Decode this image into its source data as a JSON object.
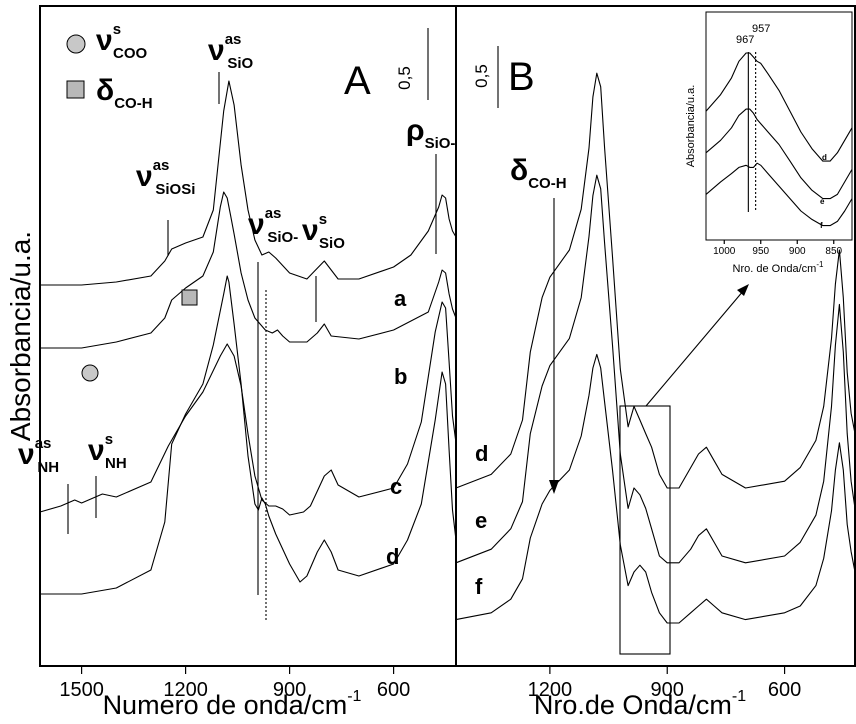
{
  "chart_data": [
    {
      "panel": "A",
      "type": "line",
      "ylabel": "Absorbancia/u.a.",
      "xlabel": "Numero de onda/cm",
      "xlabel_sup": "-1",
      "x_reversed": true,
      "xlim": [
        1620,
        420
      ],
      "x_ticks": [
        1500,
        1200,
        900,
        600
      ],
      "x_tick_labels": [
        "1500",
        "1200",
        "900",
        "600"
      ],
      "scale_bar": "0,5",
      "legend": [
        {
          "marker": "circle",
          "sym": "ν",
          "sup": "s",
          "sub": "COO",
          "color": "#c8c8c8"
        },
        {
          "marker": "square",
          "sym": "δ",
          "sup": "",
          "sub": "CO-H",
          "color": "#b8b8b8"
        }
      ],
      "band_labels": [
        {
          "sym": "ν",
          "sup": "as",
          "sub": "SiO",
          "x": 1080
        },
        {
          "sym": "ν",
          "sup": "as",
          "sub": "SiOSi",
          "x": 1230
        },
        {
          "sym": "ν",
          "sup": "as",
          "sub": "SiO-",
          "x": 960
        },
        {
          "sym": "ν",
          "sup": "s",
          "sub": "SiO",
          "x": 795
        },
        {
          "sym": "ρ",
          "sup": "",
          "sub": "SiO-",
          "x": 460
        },
        {
          "sym": "ν",
          "sup": "as",
          "sub": "NH",
          "x": 1520
        },
        {
          "sym": "ν",
          "sup": "s",
          "sub": "NH",
          "x": 1440
        }
      ],
      "series": [
        {
          "name": "a",
          "x": [
            1620,
            1500,
            1400,
            1300,
            1260,
            1240,
            1200,
            1150,
            1120,
            1090,
            1075,
            1060,
            1040,
            1020,
            1000,
            980,
            960,
            940,
            900,
            850,
            800,
            780,
            760,
            700,
            600,
            550,
            500,
            470,
            460,
            450,
            440,
            430,
            420
          ],
          "y": [
            0.2,
            0.2,
            0.21,
            0.23,
            0.28,
            0.32,
            0.34,
            0.36,
            0.45,
            0.78,
            0.88,
            0.8,
            0.6,
            0.45,
            0.35,
            0.3,
            0.31,
            0.29,
            0.24,
            0.22,
            0.28,
            0.25,
            0.22,
            0.22,
            0.26,
            0.3,
            0.38,
            0.46,
            0.5,
            0.49,
            0.42,
            0.38,
            0.36
          ]
        },
        {
          "name": "b",
          "x": [
            1620,
            1500,
            1400,
            1300,
            1260,
            1240,
            1200,
            1150,
            1120,
            1100,
            1090,
            1080,
            1070,
            1060,
            1040,
            1020,
            1000,
            970,
            950,
            935,
            920,
            900,
            850,
            820,
            800,
            780,
            700,
            600,
            500,
            470,
            460,
            450,
            440,
            430,
            420
          ],
          "y": [
            0.2,
            0.2,
            0.22,
            0.25,
            0.3,
            0.36,
            0.4,
            0.44,
            0.52,
            0.67,
            0.72,
            0.7,
            0.64,
            0.58,
            0.45,
            0.36,
            0.3,
            0.26,
            0.25,
            0.26,
            0.24,
            0.22,
            0.22,
            0.25,
            0.28,
            0.24,
            0.23,
            0.26,
            0.32,
            0.42,
            0.46,
            0.45,
            0.38,
            0.33,
            0.3
          ]
        },
        {
          "name": "c",
          "x": [
            1620,
            1560,
            1520,
            1500,
            1440,
            1400,
            1300,
            1250,
            1200,
            1150,
            1100,
            1080,
            1060,
            1040,
            1020,
            1000,
            980,
            960,
            940,
            920,
            900,
            860,
            840,
            800,
            780,
            760,
            700,
            600,
            560,
            520,
            480,
            460,
            450,
            440,
            430,
            420
          ],
          "y": [
            0.1,
            0.12,
            0.14,
            0.13,
            0.16,
            0.15,
            0.2,
            0.32,
            0.42,
            0.5,
            0.62,
            0.66,
            0.62,
            0.52,
            0.36,
            0.22,
            0.14,
            0.12,
            0.12,
            0.11,
            0.09,
            0.1,
            0.12,
            0.22,
            0.24,
            0.19,
            0.15,
            0.18,
            0.26,
            0.4,
            0.7,
            0.8,
            0.78,
            0.6,
            0.42,
            0.33
          ]
        },
        {
          "name": "d",
          "x": [
            1620,
            1500,
            1400,
            1300,
            1260,
            1240,
            1200,
            1150,
            1120,
            1090,
            1080,
            1075,
            1060,
            1040,
            1020,
            1000,
            990,
            980,
            970,
            960,
            940,
            900,
            870,
            850,
            820,
            800,
            780,
            760,
            700,
            600,
            560,
            520,
            480,
            460,
            450,
            440,
            430,
            420
          ],
          "y": [
            0.12,
            0.12,
            0.14,
            0.2,
            0.36,
            0.62,
            0.72,
            0.82,
            0.95,
            1.12,
            1.18,
            1.16,
            1.02,
            0.82,
            0.58,
            0.42,
            0.4,
            0.44,
            0.42,
            0.38,
            0.32,
            0.22,
            0.16,
            0.18,
            0.26,
            0.3,
            0.26,
            0.2,
            0.18,
            0.22,
            0.3,
            0.42,
            0.7,
            0.86,
            0.82,
            0.6,
            0.4,
            0.3
          ]
        }
      ]
    },
    {
      "panel": "B",
      "type": "line",
      "xlabel": "Nro.de Onda/cm",
      "xlabel_sup": "-1",
      "x_reversed": true,
      "xlim": [
        1440,
        420
      ],
      "x_ticks": [
        1200,
        900,
        600
      ],
      "x_tick_labels": [
        "1200",
        "900",
        "600"
      ],
      "scale_bar": "0,5",
      "annotation": {
        "sym": "δ",
        "sub": "CO-H",
        "x": 1150
      },
      "series": [
        {
          "name": "d",
          "x": [
            1440,
            1350,
            1300,
            1270,
            1250,
            1220,
            1200,
            1150,
            1120,
            1100,
            1090,
            1080,
            1070,
            1060,
            1040,
            1020,
            1000,
            985,
            970,
            955,
            940,
            920,
            900,
            870,
            840,
            820,
            800,
            780,
            760,
            700,
            600,
            560,
            520,
            500,
            480,
            470,
            460,
            450,
            440,
            430,
            420
          ],
          "y": [
            0.1,
            0.14,
            0.2,
            0.3,
            0.5,
            0.66,
            0.72,
            0.8,
            0.92,
            1.1,
            1.25,
            1.32,
            1.28,
            1.1,
            0.78,
            0.45,
            0.28,
            0.34,
            0.3,
            0.26,
            0.22,
            0.14,
            0.1,
            0.1,
            0.16,
            0.2,
            0.22,
            0.18,
            0.14,
            0.1,
            0.12,
            0.16,
            0.24,
            0.34,
            0.54,
            0.7,
            0.8,
            0.66,
            0.44,
            0.32,
            0.26
          ]
        },
        {
          "name": "e",
          "x": [
            1440,
            1350,
            1300,
            1270,
            1250,
            1220,
            1200,
            1150,
            1120,
            1100,
            1090,
            1080,
            1070,
            1060,
            1040,
            1020,
            1000,
            985,
            970,
            955,
            940,
            920,
            900,
            870,
            840,
            820,
            800,
            780,
            760,
            700,
            600,
            560,
            520,
            500,
            480,
            470,
            460,
            450,
            440,
            430,
            420
          ],
          "y": [
            0.08,
            0.12,
            0.18,
            0.26,
            0.46,
            0.6,
            0.66,
            0.74,
            0.86,
            1.04,
            1.16,
            1.22,
            1.18,
            1.02,
            0.72,
            0.4,
            0.24,
            0.3,
            0.28,
            0.24,
            0.18,
            0.1,
            0.08,
            0.08,
            0.12,
            0.16,
            0.18,
            0.14,
            0.1,
            0.08,
            0.1,
            0.14,
            0.22,
            0.32,
            0.54,
            0.72,
            0.84,
            0.7,
            0.46,
            0.32,
            0.24
          ]
        },
        {
          "name": "f",
          "x": [
            1440,
            1350,
            1300,
            1270,
            1250,
            1220,
            1200,
            1150,
            1120,
            1100,
            1090,
            1080,
            1070,
            1060,
            1040,
            1020,
            1000,
            985,
            970,
            955,
            940,
            920,
            900,
            870,
            840,
            820,
            800,
            780,
            760,
            700,
            600,
            560,
            520,
            500,
            480,
            470,
            460,
            450,
            440,
            430,
            420
          ],
          "y": [
            0.06,
            0.08,
            0.12,
            0.18,
            0.3,
            0.4,
            0.44,
            0.5,
            0.6,
            0.72,
            0.8,
            0.84,
            0.8,
            0.7,
            0.5,
            0.28,
            0.16,
            0.2,
            0.22,
            0.2,
            0.14,
            0.08,
            0.05,
            0.05,
            0.08,
            0.1,
            0.12,
            0.1,
            0.08,
            0.06,
            0.08,
            0.1,
            0.16,
            0.24,
            0.38,
            0.5,
            0.58,
            0.5,
            0.34,
            0.26,
            0.2
          ]
        }
      ]
    },
    {
      "panel": "B-inset",
      "type": "line",
      "ylabel": "Absorbancia/u.a.",
      "xlabel": "Nro. de Onda/cm",
      "xlabel_sup": "-1",
      "x_reversed": true,
      "xlim": [
        1025,
        825
      ],
      "x_ticks": [
        1000,
        950,
        900,
        850
      ],
      "x_tick_labels": [
        "1000",
        "950",
        "900",
        "850"
      ],
      "markers": [
        {
          "label": "967",
          "x": 967,
          "style": "solid"
        },
        {
          "label": "957",
          "x": 957,
          "style": "dotted"
        }
      ],
      "series": [
        {
          "name": "d",
          "x": [
            1025,
            1005,
            990,
            980,
            970,
            965,
            960,
            955,
            950,
            940,
            925,
            910,
            895,
            880,
            865,
            855,
            845,
            835,
            825
          ],
          "y": [
            0.6,
            0.68,
            0.76,
            0.84,
            0.88,
            0.88,
            0.86,
            0.84,
            0.83,
            0.78,
            0.7,
            0.6,
            0.5,
            0.42,
            0.36,
            0.36,
            0.4,
            0.46,
            0.52
          ]
        },
        {
          "name": "e",
          "x": [
            1025,
            1005,
            990,
            980,
            970,
            965,
            960,
            955,
            950,
            940,
            925,
            910,
            895,
            880,
            865,
            855,
            845,
            835,
            825
          ],
          "y": [
            0.4,
            0.46,
            0.52,
            0.58,
            0.61,
            0.61,
            0.59,
            0.56,
            0.54,
            0.5,
            0.44,
            0.36,
            0.28,
            0.22,
            0.18,
            0.18,
            0.2,
            0.26,
            0.32
          ]
        },
        {
          "name": "f",
          "x": [
            1025,
            1005,
            990,
            980,
            970,
            965,
            960,
            955,
            950,
            940,
            925,
            910,
            895,
            880,
            865,
            855,
            845,
            835,
            825
          ],
          "y": [
            0.2,
            0.26,
            0.3,
            0.33,
            0.34,
            0.33,
            0.33,
            0.35,
            0.34,
            0.3,
            0.24,
            0.18,
            0.12,
            0.08,
            0.05,
            0.05,
            0.07,
            0.12,
            0.18
          ]
        }
      ]
    }
  ]
}
